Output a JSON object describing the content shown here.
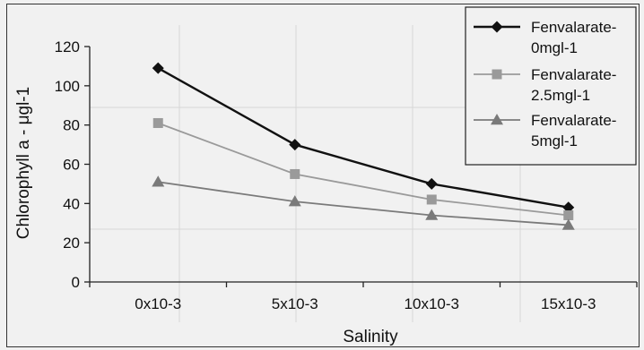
{
  "chart_data": {
    "type": "line",
    "title": "",
    "xlabel": "Salinity",
    "ylabel": "Chlorophyll a - μgl-1",
    "categories": [
      "0x10-3",
      "5x10-3",
      "10x10-3",
      "15x10-3"
    ],
    "ylim": [
      0,
      120
    ],
    "yticks": [
      0,
      20,
      40,
      60,
      80,
      100,
      120
    ],
    "grid": false,
    "legend_position": "top-right",
    "series": [
      {
        "name": "Fenvalarate-0mgl-1",
        "values": [
          109,
          70,
          50,
          38
        ],
        "color": "#111111",
        "marker": "diamond"
      },
      {
        "name": "Fenvalarate-2.5mgl-1",
        "values": [
          81,
          55,
          42,
          34
        ],
        "color": "#9a9a9a",
        "marker": "square"
      },
      {
        "name": "Fenvalarate-5mgl-1",
        "values": [
          51,
          41,
          34,
          29
        ],
        "color": "#7a7a7a",
        "marker": "triangle"
      }
    ]
  }
}
